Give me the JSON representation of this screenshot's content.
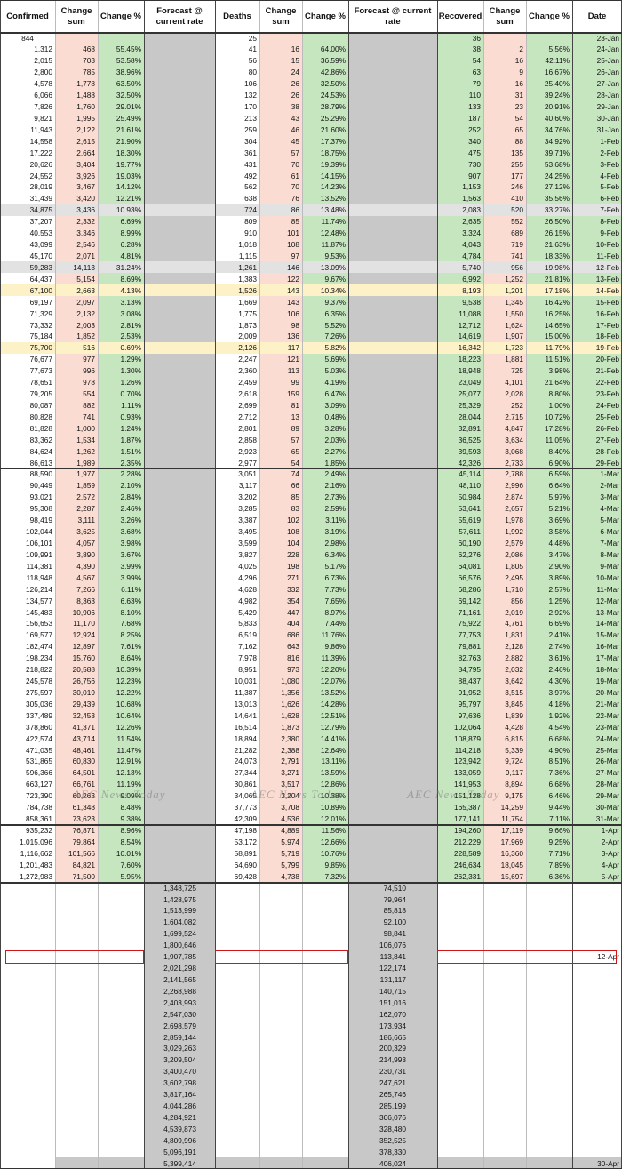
{
  "headers": {
    "confirmed": "Confirmed",
    "conf_change_sum": "Change sum",
    "conf_change_pct": "Change %",
    "forecast_conf": "Forecast @ current rate",
    "deaths": "Deaths",
    "death_change_sum": "Change sum",
    "death_change_pct": "Change %",
    "forecast_deaths": "Forecast @ current rate",
    "recovered": "Recovered",
    "rec_change_sum": "Change sum",
    "rec_change_pct": "Change %",
    "date": "Date"
  },
  "watermark": "AEC News Today",
  "colors": {
    "grey": "#c8c8c8",
    "green": "#c6e6c0",
    "pink": "#fadcd2",
    "yellow": "#fdf1c7",
    "highlight_border": "#d0151a"
  },
  "highlighted_rows": [
    "7-Feb",
    "12-Feb",
    "14-Feb",
    "19-Feb"
  ],
  "rows": [
    [
      "844",
      "",
      "",
      "25",
      "",
      "",
      "36",
      "",
      "",
      "23-Jan"
    ],
    [
      "1,312",
      "468",
      "55.45%",
      "41",
      "16",
      "64.00%",
      "38",
      "2",
      "5.56%",
      "24-Jan"
    ],
    [
      "2,015",
      "703",
      "53.58%",
      "56",
      "15",
      "36.59%",
      "54",
      "16",
      "42.11%",
      "25-Jan"
    ],
    [
      "2,800",
      "785",
      "38.96%",
      "80",
      "24",
      "42.86%",
      "63",
      "9",
      "16.67%",
      "26-Jan"
    ],
    [
      "4,578",
      "1,778",
      "63.50%",
      "106",
      "26",
      "32.50%",
      "79",
      "16",
      "25.40%",
      "27-Jan"
    ],
    [
      "6,066",
      "1,488",
      "32.50%",
      "132",
      "26",
      "24.53%",
      "110",
      "31",
      "39.24%",
      "28-Jan"
    ],
    [
      "7,826",
      "1,760",
      "29.01%",
      "170",
      "38",
      "28.79%",
      "133",
      "23",
      "20.91%",
      "29-Jan"
    ],
    [
      "9,821",
      "1,995",
      "25.49%",
      "213",
      "43",
      "25.29%",
      "187",
      "54",
      "40.60%",
      "30-Jan"
    ],
    [
      "11,943",
      "2,122",
      "21.61%",
      "259",
      "46",
      "21.60%",
      "252",
      "65",
      "34.76%",
      "31-Jan"
    ],
    [
      "14,558",
      "2,615",
      "21.90%",
      "304",
      "45",
      "17.37%",
      "340",
      "88",
      "34.92%",
      "1-Feb"
    ],
    [
      "17,222",
      "2,664",
      "18.30%",
      "361",
      "57",
      "18.75%",
      "475",
      "135",
      "39.71%",
      "2-Feb"
    ],
    [
      "20,626",
      "3,404",
      "19.77%",
      "431",
      "70",
      "19.39%",
      "730",
      "255",
      "53.68%",
      "3-Feb"
    ],
    [
      "24,552",
      "3,926",
      "19.03%",
      "492",
      "61",
      "14.15%",
      "907",
      "177",
      "24.25%",
      "4-Feb"
    ],
    [
      "28,019",
      "3,467",
      "14.12%",
      "562",
      "70",
      "14.23%",
      "1,153",
      "246",
      "27.12%",
      "5-Feb"
    ],
    [
      "31,439",
      "3,420",
      "12.21%",
      "638",
      "76",
      "13.52%",
      "1,563",
      "410",
      "35.56%",
      "6-Feb"
    ],
    [
      "34,875",
      "3,436",
      "10.93%",
      "724",
      "86",
      "13.48%",
      "2,083",
      "520",
      "33.27%",
      "7-Feb"
    ],
    [
      "37,207",
      "2,332",
      "6.69%",
      "809",
      "85",
      "11.74%",
      "2,635",
      "552",
      "26.50%",
      "8-Feb"
    ],
    [
      "40,553",
      "3,346",
      "8.99%",
      "910",
      "101",
      "12.48%",
      "3,324",
      "689",
      "26.15%",
      "9-Feb"
    ],
    [
      "43,099",
      "2,546",
      "6.28%",
      "1,018",
      "108",
      "11.87%",
      "4,043",
      "719",
      "21.63%",
      "10-Feb"
    ],
    [
      "45,170",
      "2,071",
      "4.81%",
      "1,115",
      "97",
      "9.53%",
      "4,784",
      "741",
      "18.33%",
      "11-Feb"
    ],
    [
      "59,283",
      "14,113",
      "31.24%",
      "1,261",
      "146",
      "13.09%",
      "5,740",
      "956",
      "19.98%",
      "12-Feb"
    ],
    [
      "64,437",
      "5,154",
      "8.69%",
      "1,383",
      "122",
      "9.67%",
      "6,992",
      "1,252",
      "21.81%",
      "13-Feb"
    ],
    [
      "67,100",
      "2,663",
      "4.13%",
      "1,526",
      "143",
      "10.34%",
      "8,193",
      "1,201",
      "17.18%",
      "14-Feb"
    ],
    [
      "69,197",
      "2,097",
      "3.13%",
      "1,669",
      "143",
      "9.37%",
      "9,538",
      "1,345",
      "16.42%",
      "15-Feb"
    ],
    [
      "71,329",
      "2,132",
      "3.08%",
      "1,775",
      "106",
      "6.35%",
      "11,088",
      "1,550",
      "16.25%",
      "16-Feb"
    ],
    [
      "73,332",
      "2,003",
      "2.81%",
      "1,873",
      "98",
      "5.52%",
      "12,712",
      "1,624",
      "14.65%",
      "17-Feb"
    ],
    [
      "75,184",
      "1,852",
      "2.53%",
      "2,009",
      "136",
      "7.26%",
      "14,619",
      "1,907",
      "15.00%",
      "18-Feb"
    ],
    [
      "75,700",
      "516",
      "0.69%",
      "2,126",
      "117",
      "5.82%",
      "16,342",
      "1,723",
      "11.79%",
      "19-Feb"
    ],
    [
      "76,677",
      "977",
      "1.29%",
      "2,247",
      "121",
      "5.69%",
      "18,223",
      "1,881",
      "11.51%",
      "20-Feb"
    ],
    [
      "77,673",
      "996",
      "1.30%",
      "2,360",
      "113",
      "5.03%",
      "18,948",
      "725",
      "3.98%",
      "21-Feb"
    ],
    [
      "78,651",
      "978",
      "1.26%",
      "2,459",
      "99",
      "4.19%",
      "23,049",
      "4,101",
      "21.64%",
      "22-Feb"
    ],
    [
      "79,205",
      "554",
      "0.70%",
      "2,618",
      "159",
      "6.47%",
      "25,077",
      "2,028",
      "8.80%",
      "23-Feb"
    ],
    [
      "80,087",
      "882",
      "1.11%",
      "2,699",
      "81",
      "3.09%",
      "25,329",
      "252",
      "1.00%",
      "24-Feb"
    ],
    [
      "80,828",
      "741",
      "0.93%",
      "2,712",
      "13",
      "0.48%",
      "28,044",
      "2,715",
      "10.72%",
      "25-Feb"
    ],
    [
      "81,828",
      "1,000",
      "1.24%",
      "2,801",
      "89",
      "3.28%",
      "32,891",
      "4,847",
      "17.28%",
      "26-Feb"
    ],
    [
      "83,362",
      "1,534",
      "1.87%",
      "2,858",
      "57",
      "2.03%",
      "36,525",
      "3,634",
      "11.05%",
      "27-Feb"
    ],
    [
      "84,624",
      "1,262",
      "1.51%",
      "2,923",
      "65",
      "2.27%",
      "39,593",
      "3,068",
      "8.40%",
      "28-Feb"
    ],
    [
      "86,613",
      "1,989",
      "2.35%",
      "2,977",
      "54",
      "1.85%",
      "42,326",
      "2,733",
      "6.90%",
      "29-Feb"
    ],
    [
      "88,590",
      "1,977",
      "2.28%",
      "3,051",
      "74",
      "2.49%",
      "45,114",
      "2,788",
      "6.59%",
      "1-Mar"
    ],
    [
      "90,449",
      "1,859",
      "2.10%",
      "3,117",
      "66",
      "2.16%",
      "48,110",
      "2,996",
      "6.64%",
      "2-Mar"
    ],
    [
      "93,021",
      "2,572",
      "2.84%",
      "3,202",
      "85",
      "2.73%",
      "50,984",
      "2,874",
      "5.97%",
      "3-Mar"
    ],
    [
      "95,308",
      "2,287",
      "2.46%",
      "3,285",
      "83",
      "2.59%",
      "53,641",
      "2,657",
      "5.21%",
      "4-Mar"
    ],
    [
      "98,419",
      "3,111",
      "3.26%",
      "3,387",
      "102",
      "3.11%",
      "55,619",
      "1,978",
      "3.69%",
      "5-Mar"
    ],
    [
      "102,044",
      "3,625",
      "3.68%",
      "3,495",
      "108",
      "3.19%",
      "57,611",
      "1,992",
      "3.58%",
      "6-Mar"
    ],
    [
      "106,101",
      "4,057",
      "3.98%",
      "3,599",
      "104",
      "2.98%",
      "60,190",
      "2,579",
      "4.48%",
      "7-Mar"
    ],
    [
      "109,991",
      "3,890",
      "3.67%",
      "3,827",
      "228",
      "6.34%",
      "62,276",
      "2,086",
      "3.47%",
      "8-Mar"
    ],
    [
      "114,381",
      "4,390",
      "3.99%",
      "4,025",
      "198",
      "5.17%",
      "64,081",
      "1,805",
      "2.90%",
      "9-Mar"
    ],
    [
      "118,948",
      "4,567",
      "3.99%",
      "4,296",
      "271",
      "6.73%",
      "66,576",
      "2,495",
      "3.89%",
      "10-Mar"
    ],
    [
      "126,214",
      "7,266",
      "6.11%",
      "4,628",
      "332",
      "7.73%",
      "68,286",
      "1,710",
      "2.57%",
      "11-Mar"
    ],
    [
      "134,577",
      "8,363",
      "6.63%",
      "4,982",
      "354",
      "7.65%",
      "69,142",
      "856",
      "1.25%",
      "12-Mar"
    ],
    [
      "145,483",
      "10,906",
      "8.10%",
      "5,429",
      "447",
      "8.97%",
      "71,161",
      "2,019",
      "2.92%",
      "13-Mar"
    ],
    [
      "156,653",
      "11,170",
      "7.68%",
      "5,833",
      "404",
      "7.44%",
      "75,922",
      "4,761",
      "6.69%",
      "14-Mar"
    ],
    [
      "169,577",
      "12,924",
      "8.25%",
      "6,519",
      "686",
      "11.76%",
      "77,753",
      "1,831",
      "2.41%",
      "15-Mar"
    ],
    [
      "182,474",
      "12,897",
      "7.61%",
      "7,162",
      "643",
      "9.86%",
      "79,881",
      "2,128",
      "2.74%",
      "16-Mar"
    ],
    [
      "198,234",
      "15,760",
      "8.64%",
      "7,978",
      "816",
      "11.39%",
      "82,763",
      "2,882",
      "3.61%",
      "17-Mar"
    ],
    [
      "218,822",
      "20,588",
      "10.39%",
      "8,951",
      "973",
      "12.20%",
      "84,795",
      "2,032",
      "2.46%",
      "18-Mar"
    ],
    [
      "245,578",
      "26,756",
      "12.23%",
      "10,031",
      "1,080",
      "12.07%",
      "88,437",
      "3,642",
      "4.30%",
      "19-Mar"
    ],
    [
      "275,597",
      "30,019",
      "12.22%",
      "11,387",
      "1,356",
      "13.52%",
      "91,952",
      "3,515",
      "3.97%",
      "20-Mar"
    ],
    [
      "305,036",
      "29,439",
      "10.68%",
      "13,013",
      "1,626",
      "14.28%",
      "95,797",
      "3,845",
      "4.18%",
      "21-Mar"
    ],
    [
      "337,489",
      "32,453",
      "10.64%",
      "14,641",
      "1,628",
      "12.51%",
      "97,636",
      "1,839",
      "1.92%",
      "22-Mar"
    ],
    [
      "378,860",
      "41,371",
      "12.26%",
      "16,514",
      "1,873",
      "12.79%",
      "102,064",
      "4,428",
      "4.54%",
      "23-Mar"
    ],
    [
      "422,574",
      "43,714",
      "11.54%",
      "18,894",
      "2,380",
      "14.41%",
      "108,879",
      "6,815",
      "6.68%",
      "24-Mar"
    ],
    [
      "471,035",
      "48,461",
      "11.47%",
      "21,282",
      "2,388",
      "12.64%",
      "114,218",
      "5,339",
      "4.90%",
      "25-Mar"
    ],
    [
      "531,865",
      "60,830",
      "12.91%",
      "24,073",
      "2,791",
      "13.11%",
      "123,942",
      "9,724",
      "8.51%",
      "26-Mar"
    ],
    [
      "596,366",
      "64,501",
      "12.13%",
      "27,344",
      "3,271",
      "13.59%",
      "133,059",
      "9,117",
      "7.36%",
      "27-Mar"
    ],
    [
      "663,127",
      "66,761",
      "11.19%",
      "30,861",
      "3,517",
      "12.86%",
      "141,953",
      "8,894",
      "6.68%",
      "28-Mar"
    ],
    [
      "723,390",
      "60,263",
      "9.09%",
      "34,065",
      "3,204",
      "10.38%",
      "151,128",
      "9,175",
      "6.46%",
      "29-Mar"
    ],
    [
      "784,738",
      "61,348",
      "8.48%",
      "37,773",
      "3,708",
      "10.89%",
      "165,387",
      "14,259",
      "9.44%",
      "30-Mar"
    ],
    [
      "858,361",
      "73,623",
      "9.38%",
      "42,309",
      "4,536",
      "12.01%",
      "177,141",
      "11,754",
      "7.11%",
      "31-Mar"
    ],
    [
      "935,232",
      "76,871",
      "8.96%",
      "47,198",
      "4,889",
      "11.56%",
      "194,260",
      "17,119",
      "9.66%",
      "1-Apr"
    ],
    [
      "1,015,096",
      "79,864",
      "8.54%",
      "53,172",
      "5,974",
      "12.66%",
      "212,229",
      "17,969",
      "9.25%",
      "2-Apr"
    ],
    [
      "1,116,662",
      "101,566",
      "10.01%",
      "58,891",
      "5,719",
      "10.76%",
      "228,589",
      "16,360",
      "7.71%",
      "3-Apr"
    ],
    [
      "1,201,483",
      "84,821",
      "7.60%",
      "64,690",
      "5,799",
      "9.85%",
      "246,634",
      "18,045",
      "7.89%",
      "4-Apr"
    ],
    [
      "1,272,983",
      "71,500",
      "5.95%",
      "69,428",
      "4,738",
      "7.32%",
      "262,331",
      "15,697",
      "6.36%",
      "5-Apr"
    ]
  ],
  "forecast": [
    [
      "1,348,725",
      "74,510",
      ""
    ],
    [
      "1,428,975",
      "79,964",
      ""
    ],
    [
      "1,513,999",
      "85,818",
      ""
    ],
    [
      "1,604,082",
      "92,100",
      ""
    ],
    [
      "1,699,524",
      "98,841",
      ""
    ],
    [
      "1,800,646",
      "106,076",
      ""
    ],
    [
      "1,907,785",
      "113,841",
      "12-Apr"
    ],
    [
      "2,021,298",
      "122,174",
      ""
    ],
    [
      "2,141,565",
      "131,117",
      ""
    ],
    [
      "2,268,988",
      "140,715",
      ""
    ],
    [
      "2,403,993",
      "151,016",
      ""
    ],
    [
      "2,547,030",
      "162,070",
      ""
    ],
    [
      "2,698,579",
      "173,934",
      ""
    ],
    [
      "2,859,144",
      "186,665",
      ""
    ],
    [
      "3,029,263",
      "200,329",
      ""
    ],
    [
      "3,209,504",
      "214,993",
      ""
    ],
    [
      "3,400,470",
      "230,731",
      ""
    ],
    [
      "3,602,798",
      "247,621",
      ""
    ],
    [
      "3,817,164",
      "265,746",
      ""
    ],
    [
      "4,044,286",
      "285,199",
      ""
    ],
    [
      "4,284,921",
      "306,076",
      ""
    ],
    [
      "4,539,873",
      "328,480",
      ""
    ],
    [
      "4,809,996",
      "352,525",
      ""
    ],
    [
      "5,096,191",
      "378,330",
      ""
    ],
    [
      "5,399,414",
      "406,024",
      "30-Apr"
    ]
  ]
}
